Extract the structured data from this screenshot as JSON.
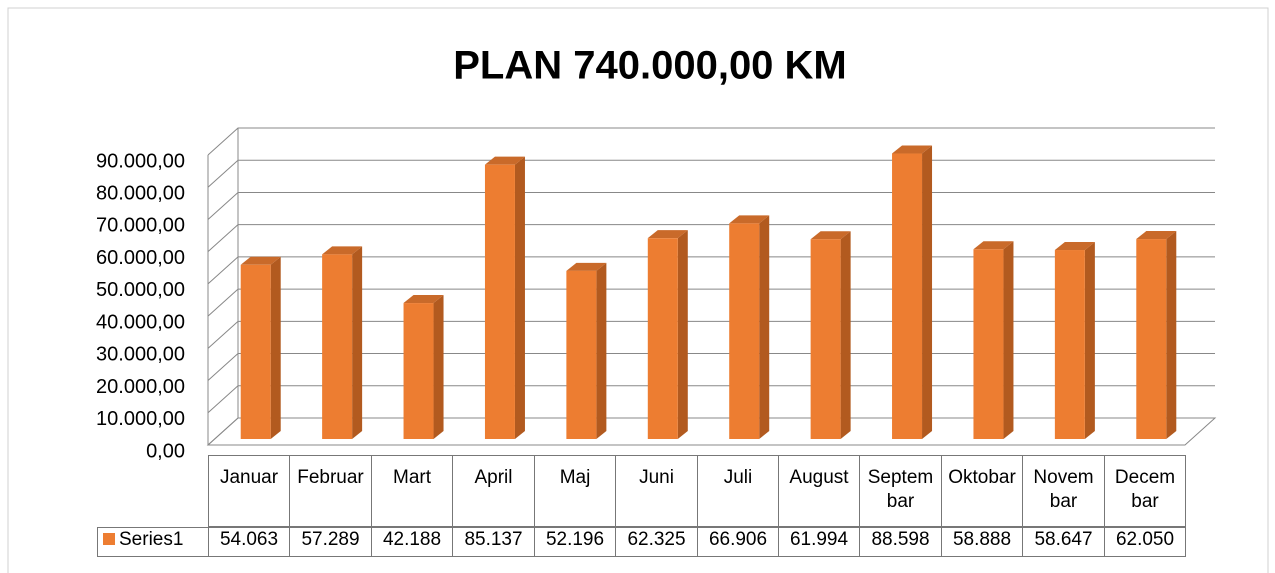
{
  "chart_data": {
    "type": "bar3d",
    "title": "PLAN 740.000,00 KM",
    "categories": [
      "Januar",
      "Februar",
      "Mart",
      "April",
      "Maj",
      "Juni",
      "Juli",
      "August",
      "Septembar",
      "Oktobar",
      "Novembar",
      "Decembar"
    ],
    "series": [
      {
        "name": "Series1",
        "color": "#ed7d31",
        "values": [
          54063,
          57289,
          42188,
          85137,
          52196,
          62325,
          66906,
          61994,
          88598,
          58888,
          58647,
          62050
        ],
        "value_labels": [
          "54.063",
          "57.289",
          "42.188",
          "85.137",
          "52.196",
          "62.325",
          "66.906",
          "61.994",
          "88.598",
          "58.888",
          "58.647",
          "62.050"
        ]
      }
    ],
    "ylim": [
      0,
      90000
    ],
    "yticks": [
      {
        "value": 0,
        "label": "0,00"
      },
      {
        "value": 10000,
        "label": "10.000,00"
      },
      {
        "value": 20000,
        "label": "20.000,00"
      },
      {
        "value": 30000,
        "label": "30.000,00"
      },
      {
        "value": 40000,
        "label": "40.000,00"
      },
      {
        "value": 50000,
        "label": "50.000,00"
      },
      {
        "value": 60000,
        "label": "60.000,00"
      },
      {
        "value": 70000,
        "label": "70.000,00"
      },
      {
        "value": 80000,
        "label": "80.000,00"
      },
      {
        "value": 90000,
        "label": "90.000,00"
      }
    ],
    "grid": true
  }
}
